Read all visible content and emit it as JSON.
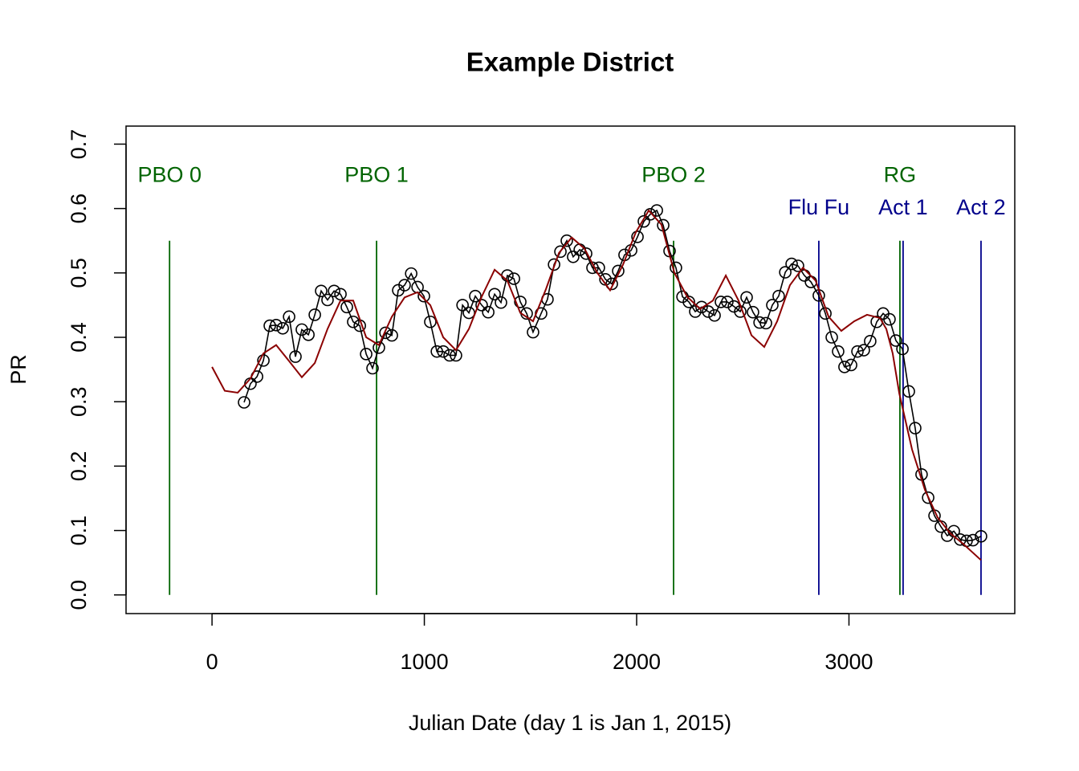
{
  "chart_data": {
    "type": "line",
    "title": "Example District",
    "xlabel": "Julian Date (day 1 is Jan 1, 2015)",
    "ylabel": "PR",
    "xlim": [
      -405,
      3781
    ],
    "ylim": [
      -0.029,
      0.728
    ],
    "xticks": [
      0,
      1000,
      2000,
      3000
    ],
    "yticks": [
      {
        "value": 0,
        "label": "0.0"
      },
      0.1,
      0.2,
      0.3,
      0.4,
      0.5,
      0.6,
      0.7
    ],
    "series": [
      {
        "color": "#000000",
        "markers": true,
        "x": [
          151,
          181,
          212,
          242,
          272,
          302,
          333,
          363,
          393,
          423,
          454,
          484,
          514,
          544,
          575,
          605,
          635,
          665,
          696,
          726,
          756,
          786,
          817,
          847,
          877,
          907,
          938,
          968,
          998,
          1028,
          1059,
          1089,
          1119,
          1149,
          1180,
          1210,
          1240,
          1270,
          1301,
          1331,
          1361,
          1391,
          1422,
          1452,
          1482,
          1512,
          1550,
          1580,
          1611,
          1641,
          1671,
          1701,
          1732,
          1762,
          1792,
          1822,
          1853,
          1883,
          1913,
          1943,
          1974,
          2004,
          2034,
          2064,
          2095,
          2125,
          2155,
          2185,
          2216,
          2246,
          2276,
          2306,
          2337,
          2367,
          2397,
          2427,
          2458,
          2488,
          2518,
          2548,
          2579,
          2609,
          2639,
          2669,
          2700,
          2730,
          2760,
          2790,
          2821,
          2858,
          2889,
          2919,
          2949,
          2979,
          3010,
          3040,
          3070,
          3100,
          3131,
          3161,
          3191,
          3221,
          3252,
          3282,
          3312,
          3342,
          3373,
          3403,
          3433,
          3463,
          3494,
          3524,
          3554,
          3584,
          3622
        ],
        "values": [
          0.299,
          0.328,
          0.339,
          0.364,
          0.418,
          0.419,
          0.414,
          0.432,
          0.37,
          0.412,
          0.404,
          0.435,
          0.472,
          0.458,
          0.472,
          0.467,
          0.447,
          0.424,
          0.418,
          0.374,
          0.352,
          0.384,
          0.407,
          0.403,
          0.473,
          0.481,
          0.499,
          0.478,
          0.464,
          0.424,
          0.378,
          0.378,
          0.372,
          0.372,
          0.45,
          0.438,
          0.464,
          0.45,
          0.439,
          0.467,
          0.454,
          0.496,
          0.491,
          0.455,
          0.437,
          0.408,
          0.437,
          0.459,
          0.513,
          0.533,
          0.55,
          0.525,
          0.536,
          0.53,
          0.508,
          0.508,
          0.49,
          0.483,
          0.503,
          0.528,
          0.535,
          0.556,
          0.58,
          0.591,
          0.597,
          0.574,
          0.534,
          0.508,
          0.463,
          0.455,
          0.44,
          0.447,
          0.44,
          0.434,
          0.455,
          0.455,
          0.448,
          0.44,
          0.462,
          0.439,
          0.423,
          0.422,
          0.45,
          0.464,
          0.501,
          0.514,
          0.511,
          0.496,
          0.486,
          0.465,
          0.437,
          0.4,
          0.378,
          0.354,
          0.357,
          0.378,
          0.38,
          0.394,
          0.424,
          0.437,
          0.428,
          0.395,
          0.382,
          0.316,
          0.259,
          0.187,
          0.151,
          0.123,
          0.106,
          0.092,
          0.099,
          0.086,
          0.084,
          0.085,
          0.091
        ]
      },
      {
        "color": "#8b0000",
        "markers": false,
        "x": [
          0,
          60,
          121,
          181,
          242,
          302,
          363,
          423,
          484,
          544,
          605,
          665,
          726,
          786,
          847,
          907,
          968,
          1028,
          1089,
          1149,
          1210,
          1270,
          1331,
          1391,
          1452,
          1512,
          1573,
          1634,
          1694,
          1754,
          1815,
          1875,
          1936,
          1996,
          2057,
          2117,
          2178,
          2238,
          2299,
          2359,
          2420,
          2480,
          2541,
          2601,
          2662,
          2722,
          2783,
          2843,
          2904,
          2964,
          3025,
          3085,
          3146,
          3176,
          3206,
          3237,
          3297,
          3358,
          3418,
          3479,
          3539,
          3622
        ],
        "values": [
          0.354,
          0.317,
          0.314,
          0.336,
          0.375,
          0.388,
          0.363,
          0.338,
          0.36,
          0.413,
          0.457,
          0.457,
          0.4,
          0.388,
          0.432,
          0.462,
          0.47,
          0.45,
          0.4,
          0.38,
          0.413,
          0.463,
          0.505,
          0.488,
          0.438,
          0.425,
          0.475,
          0.531,
          0.555,
          0.538,
          0.5,
          0.473,
          0.513,
          0.563,
          0.597,
          0.575,
          0.5,
          0.463,
          0.444,
          0.457,
          0.496,
          0.457,
          0.403,
          0.385,
          0.425,
          0.481,
          0.508,
          0.488,
          0.432,
          0.41,
          0.425,
          0.435,
          0.43,
          0.413,
          0.375,
          0.313,
          0.226,
          0.163,
          0.12,
          0.095,
          0.079,
          0.054
        ]
      }
    ],
    "annotations": [
      {
        "label": "PBO 0",
        "x": -200,
        "y": 0.65,
        "ymin": 0,
        "ymax": 0.55,
        "color": "#006400"
      },
      {
        "label": "PBO 1",
        "x": 775,
        "y": 0.65,
        "ymin": 0,
        "ymax": 0.55,
        "color": "#006400"
      },
      {
        "label": "PBO 2",
        "x": 2174,
        "y": 0.65,
        "ymin": 0,
        "ymax": 0.55,
        "color": "#006400"
      },
      {
        "label": "Flu Fu",
        "x": 2858,
        "y": 0.6,
        "ymin": 0,
        "ymax": 0.55,
        "color": "#00008b"
      },
      {
        "label": "RG",
        "x": 3240,
        "y": 0.65,
        "ymin": 0,
        "ymax": 0.55,
        "color": "#006400"
      },
      {
        "label": "Act 1",
        "x": 3255,
        "y": 0.6,
        "ymin": 0,
        "ymax": 0.55,
        "color": "#00008b"
      },
      {
        "label": "Act 2",
        "x": 3622,
        "y": 0.6,
        "ymin": 0,
        "ymax": 0.55,
        "color": "#00008b"
      }
    ]
  }
}
